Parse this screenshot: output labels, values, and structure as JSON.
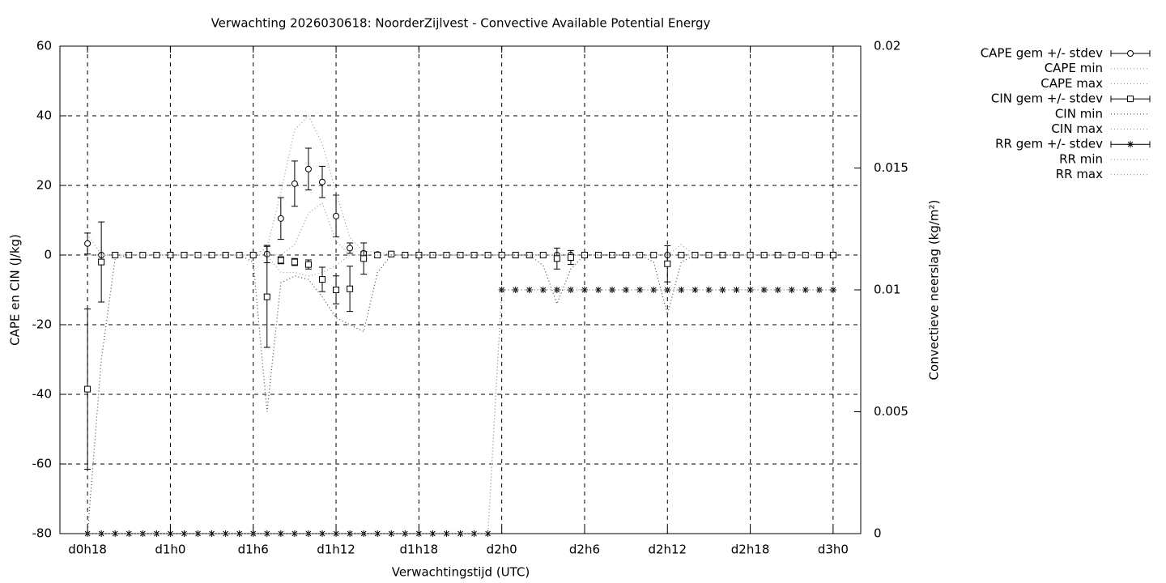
{
  "chart_data": {
    "type": "errorline",
    "title": "Verwachting 2026030618: NoorderZijlvest - Convective Available Potential Energy",
    "x_label": "Verwachtingstijd (UTC)",
    "y_label": "CAPE en CIN (J/kg)",
    "y2_label": "Convectieve neerslag (kg/m²)",
    "x": [
      18,
      19,
      20,
      21,
      22,
      23,
      24,
      25,
      26,
      27,
      28,
      29,
      30,
      31,
      32,
      33,
      34,
      35,
      36,
      37,
      38,
      39,
      40,
      41,
      42,
      43,
      44,
      45,
      46,
      47,
      48,
      49,
      50,
      51,
      52,
      53,
      54,
      55,
      56,
      57,
      58,
      59,
      60,
      61,
      62,
      63,
      64,
      65,
      66,
      67,
      68,
      69,
      70,
      71,
      72
    ],
    "xlim": [
      16,
      74
    ],
    "xticks": [
      {
        "value": 18,
        "label": "d0h18"
      },
      {
        "value": 24,
        "label": "d1h0"
      },
      {
        "value": 30,
        "label": "d1h6"
      },
      {
        "value": 36,
        "label": "d1h12"
      },
      {
        "value": 42,
        "label": "d1h18"
      },
      {
        "value": 48,
        "label": "d2h0"
      },
      {
        "value": 54,
        "label": "d2h6"
      },
      {
        "value": 60,
        "label": "d2h12"
      },
      {
        "value": 66,
        "label": "d2h18"
      },
      {
        "value": 72,
        "label": "d3h0"
      }
    ],
    "ylim": [
      -80,
      60
    ],
    "yticks": [
      -80,
      -60,
      -40,
      -20,
      0,
      20,
      40,
      60
    ],
    "y2lim": [
      0,
      0.02
    ],
    "y2ticks": [
      0,
      0.005,
      0.01,
      0.015,
      0.02
    ],
    "grid": true,
    "legend": "outside-right",
    "series": [
      {
        "name": "CAPE gem +/- stdev",
        "color": "#000000",
        "style": "errorbars",
        "marker": "circle",
        "values": [
          3.3,
          0,
          0,
          0,
          0,
          0,
          0,
          0,
          0,
          0,
          0,
          0,
          0,
          0.3,
          10.5,
          20.5,
          24.7,
          21,
          11.2,
          2,
          0.5,
          0.2,
          0.3,
          0,
          0,
          0,
          0,
          0,
          0,
          0,
          0,
          0,
          0,
          0,
          0,
          0,
          0,
          0,
          0,
          0,
          0,
          0,
          0,
          0,
          0,
          0,
          0,
          0,
          0,
          0,
          0,
          0,
          0,
          0,
          0
        ],
        "errors": [
          3,
          0,
          0,
          0,
          0,
          0,
          0,
          0,
          0,
          0,
          0,
          0,
          0,
          2.5,
          6,
          6.5,
          6,
          4.5,
          6,
          1.5,
          0.5,
          0.3,
          0.3,
          0,
          0,
          0,
          0,
          0,
          0,
          0,
          0,
          0,
          0,
          0,
          0,
          0,
          0,
          0,
          0,
          0,
          0,
          0,
          0,
          0,
          0,
          0,
          0,
          0,
          0,
          0,
          0,
          0,
          0,
          0,
          0
        ]
      },
      {
        "name": "CAPE min",
        "color": "#999999",
        "style": "dotted",
        "values": [
          0,
          0,
          0,
          0,
          0,
          0,
          0,
          0,
          0,
          0,
          0,
          0,
          0,
          0,
          0,
          3,
          12,
          15,
          4,
          0,
          0,
          0,
          0,
          0,
          0,
          0,
          0,
          0,
          0,
          0,
          0,
          0,
          0,
          0,
          0,
          0,
          0,
          0,
          0,
          0,
          0,
          0,
          0,
          0,
          0,
          0,
          0,
          0,
          0,
          0,
          0,
          0,
          0,
          0,
          0
        ]
      },
      {
        "name": "CAPE max",
        "color": "#999999",
        "style": "dotted",
        "values": [
          6,
          0,
          0,
          0,
          0,
          0,
          0,
          0,
          0,
          0,
          0,
          0,
          0,
          2,
          18,
          36,
          40,
          32,
          18,
          5,
          1,
          1,
          0,
          0,
          0,
          0,
          0,
          0,
          0,
          0,
          0,
          0,
          0,
          0,
          0,
          0,
          0,
          0,
          0,
          0,
          0,
          0,
          0,
          3,
          0,
          0,
          0,
          0,
          0,
          0,
          0,
          0,
          0,
          0,
          0
        ]
      },
      {
        "name": "CIN gem +/- stdev",
        "color": "#000000",
        "style": "errorbars",
        "marker": "square",
        "values": [
          -38.5,
          -2,
          0,
          0,
          0,
          0,
          0,
          0,
          0,
          0,
          0,
          0,
          0,
          -12,
          -1.5,
          -2,
          -2.7,
          -7,
          -10,
          -9.7,
          -1,
          0,
          0.3,
          0,
          0,
          0,
          0,
          0,
          0,
          0,
          0,
          0,
          0,
          0,
          -1,
          -0.7,
          0,
          0,
          0,
          0,
          0,
          0,
          -2.5,
          0,
          0,
          0,
          0,
          0,
          0,
          0,
          0,
          0,
          0,
          0,
          0
        ],
        "errors": [
          23,
          11.5,
          0,
          0,
          0,
          0,
          0,
          0,
          0,
          0,
          0,
          0,
          0,
          14.5,
          1,
          1,
          1.3,
          3.5,
          4,
          6.5,
          4.5,
          0,
          0,
          0,
          0,
          0,
          0,
          0,
          0,
          0,
          0,
          0,
          0,
          0,
          3,
          2,
          0,
          0,
          0,
          0,
          0,
          0,
          5.2,
          0,
          0,
          0,
          0,
          0,
          0,
          0,
          0,
          0,
          0,
          0,
          0
        ]
      },
      {
        "name": "CIN min",
        "color": "#444444",
        "style": "dotted",
        "values": [
          -80,
          -30,
          -1,
          0,
          0,
          0,
          0,
          0,
          0,
          0,
          0,
          0,
          -2,
          -45,
          -8,
          -6,
          -7,
          -12,
          -18,
          -20,
          -22,
          -5,
          0,
          0,
          0,
          0,
          0,
          0,
          0,
          0,
          0,
          0,
          0,
          -3,
          -14,
          -4,
          0,
          0,
          0,
          0,
          0,
          -2,
          -17,
          -2,
          0,
          0,
          0,
          0,
          0,
          0,
          0,
          0,
          0,
          0,
          0
        ]
      },
      {
        "name": "CIN max",
        "color": "#999999",
        "style": "dotted",
        "values": [
          0,
          0,
          0,
          0,
          0,
          0,
          0,
          0,
          0,
          0,
          0,
          0,
          0,
          0,
          -5,
          -5,
          -6,
          -5,
          -3,
          0,
          0,
          0,
          0,
          0,
          0,
          0,
          0,
          0,
          0,
          0,
          0,
          0,
          0,
          0,
          0,
          0,
          0,
          0,
          0,
          0,
          0,
          0,
          0,
          0,
          0,
          0,
          0,
          0,
          0,
          0,
          0,
          0,
          0,
          0,
          0
        ]
      },
      {
        "name": "RR gem +/- stdev",
        "color": "#000000",
        "style": "errorbars",
        "marker": "star",
        "axis": "y2",
        "values": [
          0,
          0,
          0,
          0,
          0,
          0,
          0,
          0,
          0,
          0,
          0,
          0,
          0,
          0,
          0,
          0,
          0,
          0,
          0,
          0,
          0,
          0,
          0,
          0,
          0,
          0,
          0,
          0,
          0,
          0,
          0.01,
          0.01,
          0.01,
          0.01,
          0.01,
          0.01,
          0.01,
          0.01,
          0.01,
          0.01,
          0.01,
          0.01,
          0.01,
          0.01,
          0.01,
          0.01,
          0.01,
          0.01,
          0.01,
          0.01,
          0.01,
          0.01,
          0.01,
          0.01,
          0.01
        ],
        "errors": [
          0,
          0,
          0,
          0,
          0,
          0,
          0,
          0,
          0,
          0,
          0,
          0,
          0,
          0,
          0,
          0,
          0,
          0,
          0,
          0,
          0,
          0,
          0,
          0,
          0,
          0,
          0,
          0,
          0,
          0,
          0,
          0,
          0,
          0,
          0,
          0,
          0,
          0,
          0,
          0,
          0,
          0,
          0,
          0,
          0,
          0,
          0,
          0,
          0,
          0,
          0,
          0,
          0,
          0,
          0
        ]
      },
      {
        "name": "RR min",
        "color": "#999999",
        "style": "dotted",
        "axis": "y2",
        "values": [
          0,
          0,
          0,
          0,
          0,
          0,
          0,
          0,
          0,
          0,
          0,
          0,
          0,
          0,
          0,
          0,
          0,
          0,
          0,
          0,
          0,
          0,
          0,
          0,
          0,
          0,
          0,
          0,
          0,
          0,
          0.01,
          0.01,
          0.01,
          0.01,
          0.01,
          0.01,
          0.01,
          0.01,
          0.01,
          0.01,
          0.01,
          0.01,
          0.01,
          0.01,
          0.01,
          0.01,
          0.01,
          0.01,
          0.01,
          0.01,
          0.01,
          0.01,
          0.01,
          0.01,
          0.01
        ]
      },
      {
        "name": "RR max",
        "color": "#999999",
        "style": "dotted",
        "axis": "y2",
        "values": [
          0,
          0,
          0,
          0,
          0,
          0,
          0,
          0,
          0,
          0,
          0,
          0,
          0,
          0,
          0,
          0,
          0,
          0,
          0,
          0,
          0,
          0,
          0,
          0,
          0,
          0,
          0,
          0,
          0,
          0,
          0.01,
          0.01,
          0.01,
          0.01,
          0.01,
          0.01,
          0.01,
          0.01,
          0.01,
          0.01,
          0.01,
          0.01,
          0.01,
          0.01,
          0.01,
          0.01,
          0.01,
          0.01,
          0.01,
          0.01,
          0.01,
          0.01,
          0.01,
          0.01,
          0.01
        ]
      }
    ]
  }
}
